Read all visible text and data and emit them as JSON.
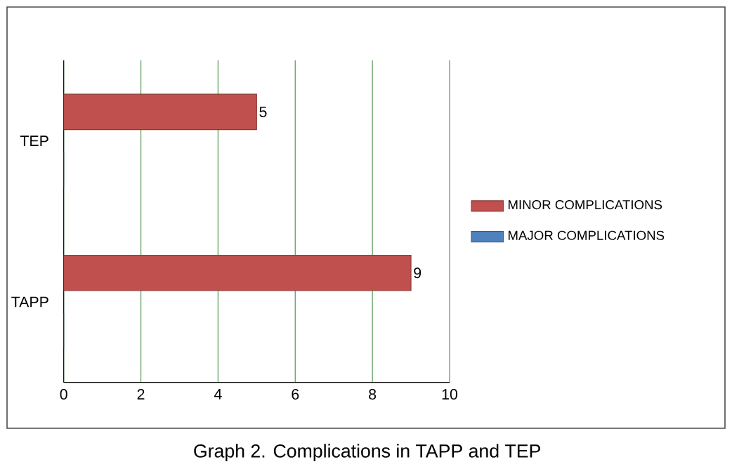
{
  "chart_data": {
    "type": "bar",
    "orientation": "horizontal",
    "categories": [
      "TEP",
      "TAPP"
    ],
    "series": [
      {
        "name": "MINOR COMPLICATIONS",
        "color": "#c0504d",
        "values": [
          5,
          9
        ],
        "value_labels": [
          "5",
          "9"
        ]
      },
      {
        "name": "MAJOR COMPLICATIONS",
        "color": "#4f81bd",
        "values": [
          0,
          0
        ]
      }
    ],
    "xlim": [
      0,
      10
    ],
    "xticks": [
      0,
      2,
      4,
      6,
      8,
      10
    ],
    "grid": "x",
    "legend": "right",
    "annotations": [
      "Graph 2. Complications in TAPP and TEP"
    ]
  }
}
